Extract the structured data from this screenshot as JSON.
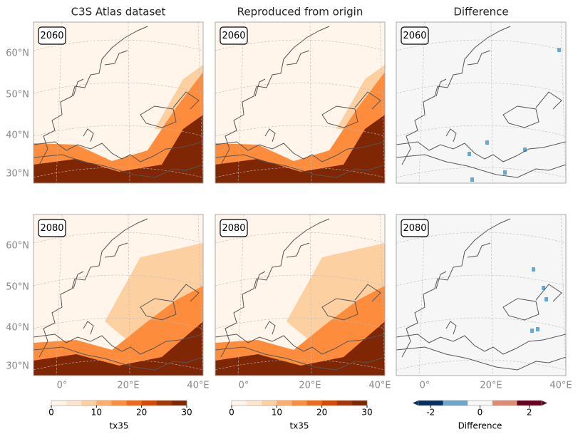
{
  "columns": [
    {
      "title": "C3S Atlas dataset"
    },
    {
      "title": "Reproduced from origin"
    },
    {
      "title": "Difference"
    }
  ],
  "rows": [
    {
      "label": "2060"
    },
    {
      "label": "2080"
    }
  ],
  "lat_ticks": [
    "60°N",
    "50°N",
    "40°N",
    "30°N"
  ],
  "lon_ticks": [
    "0°",
    "20°E",
    "40°E"
  ],
  "colorbars": [
    {
      "label": "tx35",
      "lim": [
        0,
        30
      ],
      "ticks": [
        0,
        10,
        20,
        30
      ],
      "colors": [
        "#fff5eb",
        "#fee6ce",
        "#fdd0a2",
        "#fdae6b",
        "#fd8d3c",
        "#f16913",
        "#d94801",
        "#a63603",
        "#7f2704"
      ]
    },
    {
      "label": "tx35",
      "lim": [
        0,
        30
      ],
      "ticks": [
        0,
        10,
        20,
        30
      ],
      "colors": [
        "#fff5eb",
        "#fee6ce",
        "#fdd0a2",
        "#fdae6b",
        "#fd8d3c",
        "#f16913",
        "#d94801",
        "#a63603",
        "#7f2704"
      ]
    },
    {
      "label": "Difference",
      "lim": [
        -2.5,
        2.5
      ],
      "ticks": [
        -2,
        0,
        2
      ],
      "colors": [
        "#053061",
        "#6aa6cd",
        "#f7f7f7",
        "#de8a75",
        "#67001f"
      ],
      "extend": "both"
    }
  ]
}
